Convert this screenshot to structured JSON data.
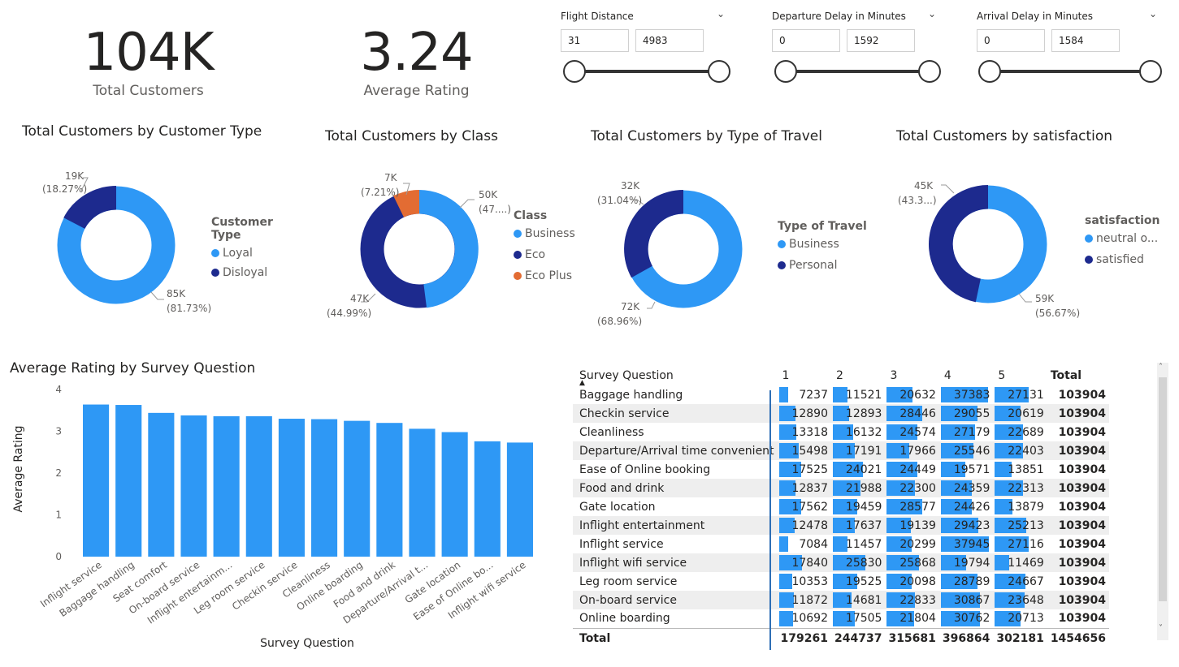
{
  "kpis": {
    "total_customers": {
      "value": "104K",
      "label": "Total Customers"
    },
    "average_rating": {
      "value": "3.24",
      "label": "Average Rating"
    }
  },
  "slicers": [
    {
      "title": "Flight Distance",
      "min": "31",
      "max": "4983"
    },
    {
      "title": "Departure Delay in Minutes",
      "min": "0",
      "max": "1592"
    },
    {
      "title": "Arrival Delay in Minutes",
      "min": "0",
      "max": "1584"
    }
  ],
  "colors": {
    "light_blue": "#2e98f5",
    "dark_blue": "#1d2a8e",
    "orange": "#e36c33"
  },
  "donuts": {
    "customer_type": {
      "title": "Total Customers by Customer Type",
      "legend_title": "Customer Type",
      "legend": [
        "Loyal",
        "Disloyal"
      ],
      "label_a_value": "19K",
      "label_a_pct": "(18.27%)",
      "label_b_value": "85K",
      "label_b_pct": "(81.73%)"
    },
    "class": {
      "title": "Total Customers by Class",
      "legend_title": "Class",
      "legend": [
        "Business",
        "Eco",
        "Eco Plus"
      ],
      "label_a_value": "7K",
      "label_a_pct": "(7.21%)",
      "label_b_value": "50K",
      "label_b_pct": "(47....)",
      "label_c_value": "47K",
      "label_c_pct": "(44.99%)"
    },
    "travel": {
      "title": "Total Customers by Type of Travel",
      "legend_title": "Type of Travel",
      "legend": [
        "Business",
        "Personal"
      ],
      "label_a_value": "32K",
      "label_a_pct": "(31.04%)",
      "label_b_value": "72K",
      "label_b_pct": "(68.96%)"
    },
    "satisfaction": {
      "title": "Total Customers by satisfaction",
      "legend_title": "satisfaction",
      "legend": [
        "neutral o...",
        "satisfied"
      ],
      "label_a_value": "45K",
      "label_a_pct": "(43.3...)",
      "label_b_value": "59K",
      "label_b_pct": "(56.67%)"
    }
  },
  "bar_chart": {
    "title": "Average Rating by Survey Question",
    "xlabel": "Survey Question",
    "ylabel": "Average Rating"
  },
  "chart_data": {
    "type": "bar",
    "title": "Average Rating by Survey Question",
    "xlabel": "Survey Question",
    "ylabel": "Average Rating",
    "ylim": [
      0,
      4
    ],
    "yticks": [
      0,
      1,
      2,
      3,
      4
    ],
    "grid": false,
    "categories": [
      "Inflight service",
      "Baggage handling",
      "Seat comfort",
      "On-board service",
      "Inflight entertainm...",
      "Leg room service",
      "Checkin service",
      "Cleanliness",
      "Online boarding",
      "Food and drink",
      "Departure/Arrival t...",
      "Gate location",
      "Ease of Online bo...",
      "Inflight wifi service"
    ],
    "values": [
      3.64,
      3.63,
      3.44,
      3.38,
      3.36,
      3.36,
      3.3,
      3.29,
      3.25,
      3.2,
      3.06,
      2.98,
      2.76,
      2.73
    ]
  },
  "matrix": {
    "header": {
      "question": "Survey Question",
      "cols": [
        "1",
        "2",
        "3",
        "4",
        "5"
      ],
      "total": "Total"
    },
    "rows": [
      {
        "q": "Baggage handling",
        "v": [
          "7237",
          "11521",
          "20632",
          "37383",
          "27131"
        ],
        "t": "103904"
      },
      {
        "q": "Checkin service",
        "v": [
          "12890",
          "12893",
          "28446",
          "29055",
          "20619"
        ],
        "t": "103904"
      },
      {
        "q": "Cleanliness",
        "v": [
          "13318",
          "16132",
          "24574",
          "27179",
          "22689"
        ],
        "t": "103904"
      },
      {
        "q": "Departure/Arrival time convenient",
        "v": [
          "15498",
          "17191",
          "17966",
          "25546",
          "22403"
        ],
        "t": "103904"
      },
      {
        "q": "Ease of Online booking",
        "v": [
          "17525",
          "24021",
          "24449",
          "19571",
          "13851"
        ],
        "t": "103904"
      },
      {
        "q": "Food and drink",
        "v": [
          "12837",
          "21988",
          "22300",
          "24359",
          "22313"
        ],
        "t": "103904"
      },
      {
        "q": "Gate location",
        "v": [
          "17562",
          "19459",
          "28577",
          "24426",
          "13879"
        ],
        "t": "103904"
      },
      {
        "q": "Inflight entertainment",
        "v": [
          "12478",
          "17637",
          "19139",
          "29423",
          "25213"
        ],
        "t": "103904"
      },
      {
        "q": "Inflight service",
        "v": [
          "7084",
          "11457",
          "20299",
          "37945",
          "27116"
        ],
        "t": "103904"
      },
      {
        "q": "Inflight wifi service",
        "v": [
          "17840",
          "25830",
          "25868",
          "19794",
          "11469"
        ],
        "t": "103904"
      },
      {
        "q": "Leg room service",
        "v": [
          "10353",
          "19525",
          "20098",
          "28789",
          "24667"
        ],
        "t": "103904"
      },
      {
        "q": "On-board service",
        "v": [
          "11872",
          "14681",
          "22833",
          "30867",
          "23648"
        ],
        "t": "103904"
      },
      {
        "q": "Online boarding",
        "v": [
          "10692",
          "17505",
          "21804",
          "30762",
          "20713"
        ],
        "t": "103904"
      }
    ],
    "footer": {
      "label": "Total",
      "v": [
        "179261",
        "244737",
        "315681",
        "396864",
        "302181"
      ],
      "t": "1454656"
    }
  }
}
